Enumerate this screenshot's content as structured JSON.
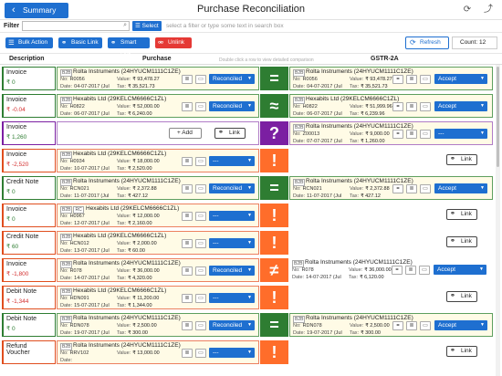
{
  "titlebar": {
    "back_label": "Summary",
    "title": "Purchase Reconciliation"
  },
  "filter": {
    "label": "Filter",
    "select_label": "Select",
    "hint": "select a filter or type some text in search box"
  },
  "toolbar": {
    "bulk": "Bulk Action",
    "basic_link": "Basic Link",
    "smart_link": "Smart Link",
    "unlink": "Unlink",
    "refresh": "Refresh",
    "count": "Count: 12"
  },
  "columns": {
    "description": "Description",
    "purchase": "Purchase",
    "hint": "Double click a row to view detailed comparison",
    "gstr": "GSTR-2A"
  },
  "labels": {
    "no": "No:",
    "value": "Value:",
    "date": "Date:",
    "tax": "Tax:",
    "add": "+ Add",
    "link": "Link"
  },
  "rows": [
    {
      "type": "Invoice",
      "amount": "₹ 0",
      "amount_neg": false,
      "match": "green",
      "symbol": "=",
      "p": {
        "tags": [
          "B2B"
        ],
        "party": "Rolta Instruments",
        "gstin": "(24HYUCM1111C1ZE)",
        "no": "R0056",
        "value": "₹ 93,478.27",
        "date": "04-07-2017 (Jul",
        "tax": "₹ 35,521.73",
        "status": "Reconciled"
      },
      "g": {
        "tags": [
          "B2B"
        ],
        "party": "Rolta Instruments",
        "gstin": "(24HYUCM1111C1ZE)",
        "no": "R0056",
        "value": "₹ 93,478.27",
        "date": "04-07-2017 (Jul",
        "tax": "₹ 35,521.73",
        "status": "Accept"
      }
    },
    {
      "type": "Invoice",
      "amount": "₹ -0.04",
      "amount_neg": true,
      "match": "green",
      "symbol": "≈",
      "p": {
        "tags": [
          "B2B"
        ],
        "party": "Hexabits Ltd",
        "gstin": "(29KELCM6666C1ZL)",
        "no": "H0822",
        "value": "₹ 52,000.00",
        "date": "06-07-2017 (Jul",
        "tax": "₹ 6,240.00",
        "status": "Reconciled"
      },
      "g": {
        "tags": [
          "B2B"
        ],
        "party": "Hexabits Ltd",
        "gstin": "(29KELCM6666C1ZL)",
        "no": "H0822",
        "value": "₹ 51,999.96",
        "date": "06-07-2017 (Jul",
        "tax": "₹ 6,239.96",
        "status": "Accept"
      }
    },
    {
      "type": "Invoice",
      "amount": "₹ 1,260",
      "amount_neg": false,
      "match": "purple",
      "symbol": "?",
      "p": null,
      "g": {
        "tags": [
          "B2B"
        ],
        "party": "Rolta Instruments",
        "gstin": "(24HYUCM1111C1ZE)",
        "no": "Z00013",
        "value": "₹ 9,000.00",
        "date": "07-07-2017 (Jul",
        "tax": "₹ 1,260.00",
        "status": "---"
      }
    },
    {
      "type": "Invoice",
      "amount": "₹ -2,520",
      "amount_neg": true,
      "match": "red",
      "symbol": "!",
      "p": {
        "tags": [
          "B2B"
        ],
        "party": "Hexabits Ltd",
        "gstin": "(29KELCM6666C1ZL)",
        "no": "H0934",
        "value": "₹ 18,000.00",
        "date": "10-07-2017 (Jul",
        "tax": "₹ 2,520.00",
        "status": "---"
      },
      "g": null
    },
    {
      "type": "Credit Note",
      "amount": "₹ 0",
      "amount_neg": false,
      "match": "green",
      "symbol": "=",
      "p": {
        "tags": [
          "B2B"
        ],
        "party": "Rolta Instruments",
        "gstin": "(24HYUCM1111C1ZE)",
        "no": "RCN021",
        "value": "₹ 2,372.88",
        "date": "11-07-2017 (Jul",
        "tax": "₹ 427.12",
        "status": "Reconciled"
      },
      "g": {
        "tags": [
          "B2B"
        ],
        "party": "Rolta Instruments",
        "gstin": "(24HYUCM1111C1ZE)",
        "no": "RCN021",
        "value": "₹ 2,372.88",
        "date": "11-07-2017 (Jul",
        "tax": "₹ 427.12",
        "status": "Accept"
      }
    },
    {
      "type": "Invoice",
      "amount": "₹ 0",
      "amount_neg": false,
      "match": "red",
      "symbol": "!",
      "p": {
        "tags": [
          "B2B",
          "RC"
        ],
        "party": "Hexabits Ltd",
        "gstin": "(29KELCM6666C1ZL)",
        "no": "H0967",
        "value": "₹ 12,000.00",
        "date": "12-07-2017 (Jul",
        "tax": "₹ 2,160.00",
        "status": "---"
      },
      "g": null
    },
    {
      "type": "Credit Note",
      "amount": "₹ 60",
      "amount_neg": false,
      "match": "red",
      "symbol": "!",
      "p": {
        "tags": [
          "B2B"
        ],
        "party": "Hexabits Ltd",
        "gstin": "(29KELCM6666C1ZL)",
        "no": "HCN012",
        "value": "₹ 2,000.00",
        "date": "13-07-2017 (Jul",
        "tax": "₹ 60.00",
        "status": "---"
      },
      "g": null
    },
    {
      "type": "Invoice",
      "amount": "₹ -1,800",
      "amount_neg": true,
      "match": "red",
      "symbol": "≠",
      "p": {
        "tags": [
          "B2B"
        ],
        "party": "Rolta Instruments",
        "gstin": "(24HYUCM1111C1ZE)",
        "no": "R078",
        "value": "₹ 36,000.00",
        "date": "14-07-2017 (Jul",
        "tax": "₹ 4,320.00",
        "status": "Reconciled"
      },
      "g": {
        "tags": [
          "B2B"
        ],
        "party": "Rolta Instruments",
        "gstin": "(24HYUCM1111C1ZE)",
        "no": "R078",
        "value": "₹ 36,000.00",
        "date": "14-07-2017 (Jul",
        "tax": "₹ 6,120.00",
        "status": "Accept"
      }
    },
    {
      "type": "Debit Note",
      "amount": "₹ -1,344",
      "amount_neg": true,
      "match": "red",
      "symbol": "!",
      "p": {
        "tags": [
          "B2B"
        ],
        "party": "Hexabits Ltd",
        "gstin": "(29KELCM6666C1ZL)",
        "no": "HDN091",
        "value": "₹ 11,200.00",
        "date": "15-07-2017 (Jul",
        "tax": "₹ 1,344.00",
        "status": "---"
      },
      "g": null
    },
    {
      "type": "Debit Note",
      "amount": "₹ 0",
      "amount_neg": false,
      "match": "green",
      "symbol": "=",
      "p": {
        "tags": [
          "B2B"
        ],
        "party": "Rolta Instruments",
        "gstin": "(24HYUCM1111C1ZE)",
        "no": "RDN078",
        "value": "₹ 2,500.00",
        "date": "19-07-2017 (Jul",
        "tax": "₹ 300.00",
        "status": "Reconciled"
      },
      "g": {
        "tags": [
          "B2B"
        ],
        "party": "Rolta Instruments",
        "gstin": "(24HYUCM1111C1ZE)",
        "no": "RDN078",
        "value": "₹ 2,500.00",
        "date": "19-07-2017 (Jul",
        "tax": "₹ 300.00",
        "status": "Accept"
      }
    },
    {
      "type": "Refund Voucher",
      "amount": "",
      "amount_neg": false,
      "match": "red",
      "symbol": "!",
      "p": {
        "tags": [
          "B2B"
        ],
        "party": "Rolta Instruments",
        "gstin": "(24HYUCM1111C1ZE)",
        "no": "RRV102",
        "value": "₹ 13,000.00",
        "date": "",
        "tax": "",
        "status": "---"
      },
      "g": null
    }
  ]
}
